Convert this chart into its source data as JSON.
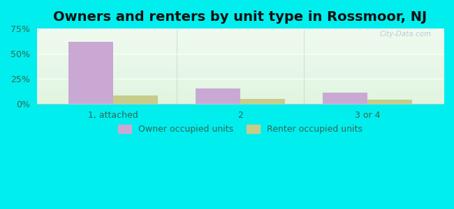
{
  "title": "Owners and renters by unit type in Rossmoor, NJ",
  "categories": [
    "1, attached",
    "2",
    "3 or 4"
  ],
  "owner_values": [
    62,
    15,
    11
  ],
  "renter_values": [
    8,
    5,
    4
  ],
  "owner_color": "#c9a8d4",
  "renter_color": "#c8cc8a",
  "ylim": [
    0,
    75
  ],
  "yticks": [
    0,
    25,
    50,
    75
  ],
  "ytick_labels": [
    "0%",
    "25%",
    "50%",
    "75%"
  ],
  "bar_width": 0.35,
  "outer_bg": "#00eeee",
  "plot_bg_colors": [
    "#e8f5e8",
    "#f5fbf5",
    "#dff2ef"
  ],
  "watermark": "City-Data.com",
  "legend_owner": "Owner occupied units",
  "legend_renter": "Renter occupied units",
  "title_fontsize": 14,
  "tick_fontsize": 9,
  "legend_fontsize": 9,
  "grid_color": "#d0e8d0",
  "separator_color": "#b0d0c0"
}
